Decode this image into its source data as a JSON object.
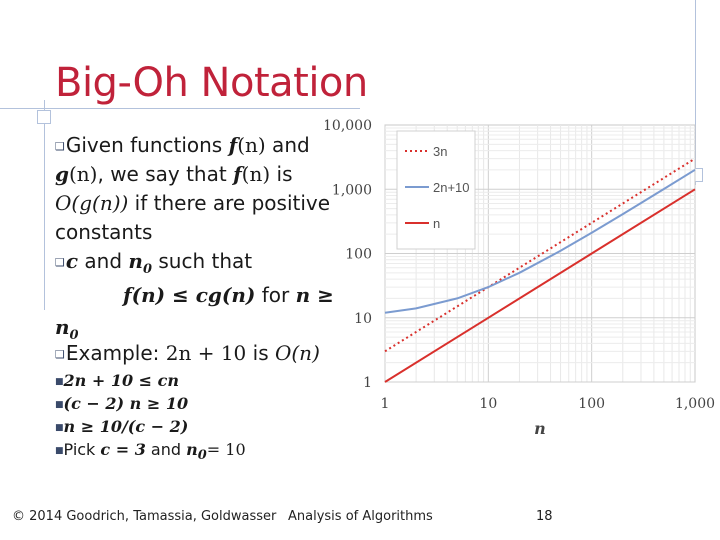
{
  "slide": {
    "title": "Big-Oh Notation",
    "body": {
      "line1_pre": "Given functions ",
      "line1_f": "f",
      "line1_n": "(n)",
      "line1_post": " and",
      "line2_g": "g",
      "line2_n": "(n)",
      "line2_mid": ", we say that ",
      "line2_f": "f",
      "line2_n2": "(n)",
      "line2_post": " is",
      "line3_O": "O",
      "line3_arg": "(g(n))",
      "line3_post": " if there are positive",
      "line4": "constants",
      "line5_c": "c",
      "line5_mid": " and ",
      "line5_n": "n",
      "line5_sub": "0",
      "line5_post": " such that",
      "line6_expr": "f(n) ≤ cg(n)",
      "line6_for": "  for ",
      "line6_n": "n ≥",
      "line7_n": "n",
      "line7_sub": "0",
      "line8_pre": "Example: ",
      "line8_expr": "2n + 10",
      "line8_is": " is ",
      "line8_O": "O(n)"
    },
    "sub_bullets": [
      {
        "expr": "2n + 10 ≤ cn"
      },
      {
        "expr": "(c − 2) n ≥ 10"
      },
      {
        "expr": "n ≥ 10/(c − 2)"
      },
      {
        "pick": "Pick ",
        "c": "c = 3",
        "and": " and ",
        "n0": "n",
        "n0sub": "0",
        "val": "= 10"
      }
    ],
    "footer": {
      "copyright": "© 2014 Goodrich, Tamassia, Goldwasser",
      "course": "Analysis of Algorithms",
      "page": "18"
    }
  },
  "chart_data": {
    "type": "line",
    "x_scale": "log",
    "y_scale": "log",
    "xlim": [
      1,
      1000
    ],
    "ylim": [
      1,
      10000
    ],
    "x_ticks": [
      "1",
      "10",
      "100",
      "1,000"
    ],
    "y_ticks": [
      "1",
      "10",
      "100",
      "1,000",
      "10,000"
    ],
    "xlabel": "n",
    "ylabel": "",
    "grid": true,
    "legend_position": "top-left",
    "series": [
      {
        "name": "3n",
        "style": "dotted",
        "color": "#d9302c",
        "x": [
          1,
          10,
          100,
          1000
        ],
        "y": [
          3,
          30,
          300,
          3000
        ]
      },
      {
        "name": "2n+10",
        "style": "solid",
        "color": "#7b9bd0",
        "x": [
          1,
          2,
          5,
          10,
          20,
          50,
          100,
          200,
          500,
          1000
        ],
        "y": [
          12,
          14,
          20,
          30,
          50,
          110,
          210,
          410,
          1010,
          2010
        ]
      },
      {
        "name": "n",
        "style": "solid",
        "color": "#d9302c",
        "x": [
          1,
          10,
          100,
          1000
        ],
        "y": [
          1,
          10,
          100,
          1000
        ]
      }
    ]
  }
}
